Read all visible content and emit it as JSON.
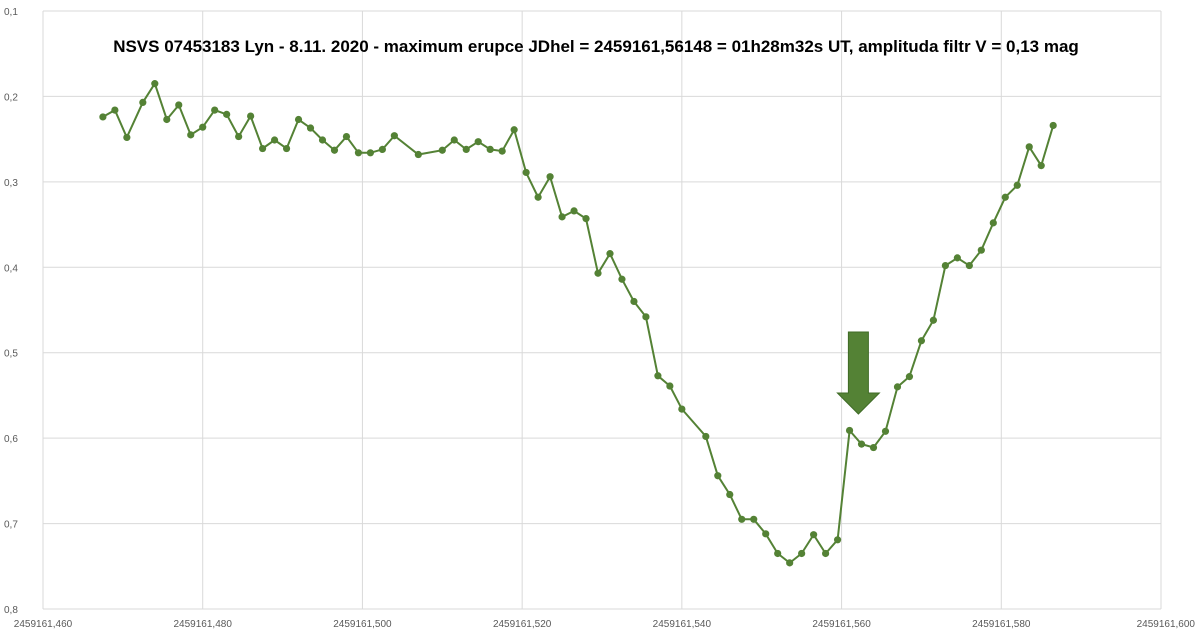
{
  "chart_data": {
    "type": "line",
    "title": "NSVS 07453183 Lyn - 8.11. 2020 - maximum erupce JDhel = 2459161,56148 = 01h28m32s UT, amplituda filtr V = 0,13 mag",
    "xlabel": "",
    "ylabel": "",
    "xlim": [
      2459161.46,
      2459161.6
    ],
    "ylim": [
      0.1,
      0.8
    ],
    "y_inverted": true,
    "grid": true,
    "legend": "none",
    "x_tick_labels": [
      "2459161,460",
      "2459161,480",
      "2459161,500",
      "2459161,520",
      "2459161,540",
      "2459161,560",
      "2459161,580",
      "2459161,600"
    ],
    "y_tick_labels": [
      "0,1",
      "0,2",
      "0,3",
      "0,4",
      "0,5",
      "0,6",
      "0,7",
      "0,8"
    ],
    "series_color": "#548235",
    "arrow_color": "#548235",
    "annotation_arrow_x": 2459161.56148,
    "series": [
      {
        "x": [
          2459161.4675,
          2459161.469,
          2459161.4705,
          2459161.4725,
          2459161.474,
          2459161.4755,
          2459161.477,
          2459161.4785,
          2459161.48,
          2459161.4815,
          2459161.483,
          2459161.4845,
          2459161.486,
          2459161.4875,
          2459161.489,
          2459161.4905,
          2459161.492,
          2459161.4935,
          2459161.495,
          2459161.4965,
          2459161.498,
          2459161.4995,
          2459161.501,
          2459161.5025,
          2459161.504,
          2459161.507,
          2459161.51,
          2459161.5115,
          2459161.513,
          2459161.5145,
          2459161.516,
          2459161.5175,
          2459161.519,
          2459161.5205,
          2459161.522,
          2459161.5235,
          2459161.525,
          2459161.5265,
          2459161.528,
          2459161.5295,
          2459161.531,
          2459161.5325,
          2459161.534,
          2459161.5355,
          2459161.537,
          2459161.5385,
          2459161.54,
          2459161.543,
          2459161.5445,
          2459161.546,
          2459161.5475,
          2459161.549,
          2459161.5505,
          2459161.552,
          2459161.5535,
          2459161.555,
          2459161.5565,
          2459161.558,
          2459161.5595,
          2459161.561,
          2459161.5625,
          2459161.564,
          2459161.5655,
          2459161.567,
          2459161.5685,
          2459161.57,
          2459161.5715,
          2459161.573,
          2459161.5745,
          2459161.576,
          2459161.5775,
          2459161.579,
          2459161.5805,
          2459161.582,
          2459161.5835,
          2459161.585,
          2459161.5865
        ],
        "values": [
          0.224,
          0.216,
          0.248,
          0.207,
          0.185,
          0.227,
          0.21,
          0.245,
          0.236,
          0.216,
          0.221,
          0.247,
          0.223,
          0.261,
          0.251,
          0.261,
          0.227,
          0.237,
          0.251,
          0.263,
          0.247,
          0.266,
          0.266,
          0.262,
          0.246,
          0.268,
          0.263,
          0.251,
          0.262,
          0.253,
          0.262,
          0.264,
          0.239,
          0.289,
          0.318,
          0.294,
          0.341,
          0.334,
          0.343,
          0.407,
          0.384,
          0.414,
          0.44,
          0.458,
          0.527,
          0.539,
          0.566,
          0.598,
          0.644,
          0.666,
          0.695,
          0.695,
          0.712,
          0.735,
          0.746,
          0.735,
          0.713,
          0.735,
          0.719,
          0.591,
          0.607,
          0.611,
          0.592,
          0.54,
          0.528,
          0.486,
          0.462,
          0.398,
          0.389,
          0.398,
          0.38,
          0.348,
          0.318,
          0.304,
          0.259,
          0.281,
          0.234
        ]
      }
    ]
  }
}
